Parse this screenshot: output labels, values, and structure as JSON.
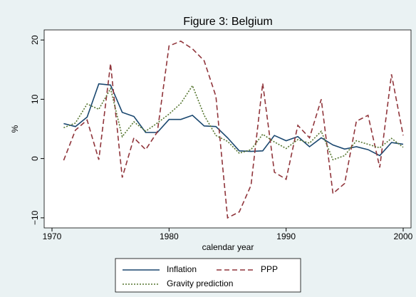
{
  "chart_data": {
    "type": "line",
    "title": "Figure 3: Belgium",
    "x_label": "calendar year",
    "y_label": "%",
    "x": [
      1971,
      1972,
      1973,
      1974,
      1975,
      1976,
      1977,
      1978,
      1979,
      1980,
      1981,
      1982,
      1983,
      1984,
      1985,
      1986,
      1987,
      1988,
      1989,
      1990,
      1991,
      1992,
      1993,
      1994,
      1995,
      1996,
      1997,
      1998,
      1999,
      2000
    ],
    "series": [
      {
        "name": "Inflation",
        "color": "#1a476f",
        "style": "solid",
        "values": [
          5.9,
          5.4,
          7.0,
          12.6,
          12.4,
          7.8,
          7.1,
          4.4,
          4.4,
          6.6,
          6.6,
          7.3,
          5.5,
          5.4,
          3.5,
          1.3,
          1.2,
          1.3,
          3.9,
          3.0,
          3.7,
          2.0,
          3.5,
          2.3,
          1.6,
          2.0,
          1.5,
          0.5,
          2.7,
          2.4
        ]
      },
      {
        "name": "PPP",
        "color": "#90353b",
        "style": "dashed",
        "values": [
          -0.3,
          4.8,
          6.5,
          -0.2,
          16,
          -3.2,
          3.5,
          1.5,
          4.5,
          19,
          19.8,
          18.5,
          16.5,
          10.5,
          -10,
          -9,
          -4.5,
          12.7,
          -2.3,
          -3.5,
          5.6,
          3.5,
          10,
          -5.9,
          -4.2,
          6.3,
          7.3,
          -1.5,
          14.2,
          3.9
        ]
      },
      {
        "name": "Gravity prediction",
        "color": "#55752f",
        "style": "dotted",
        "values": [
          5.2,
          6.0,
          9.2,
          8.3,
          11.8,
          3.7,
          6.2,
          4.6,
          6.0,
          7.5,
          9.3,
          12.3,
          7.3,
          3.9,
          2.9,
          0.9,
          1.5,
          4.1,
          2.8,
          1.7,
          3.2,
          2.6,
          4.6,
          -0.2,
          0.5,
          3.0,
          2.4,
          1.8,
          3.4,
          1.9
        ]
      }
    ],
    "xlim": [
      1969.33,
      2000.67
    ],
    "xticks": [
      1970,
      1980,
      1990,
      2000
    ],
    "ylim": [
      -11.7,
      21.7
    ],
    "yticks": [
      {
        "value": -10,
        "label": "−10"
      },
      0,
      10,
      20
    ]
  }
}
